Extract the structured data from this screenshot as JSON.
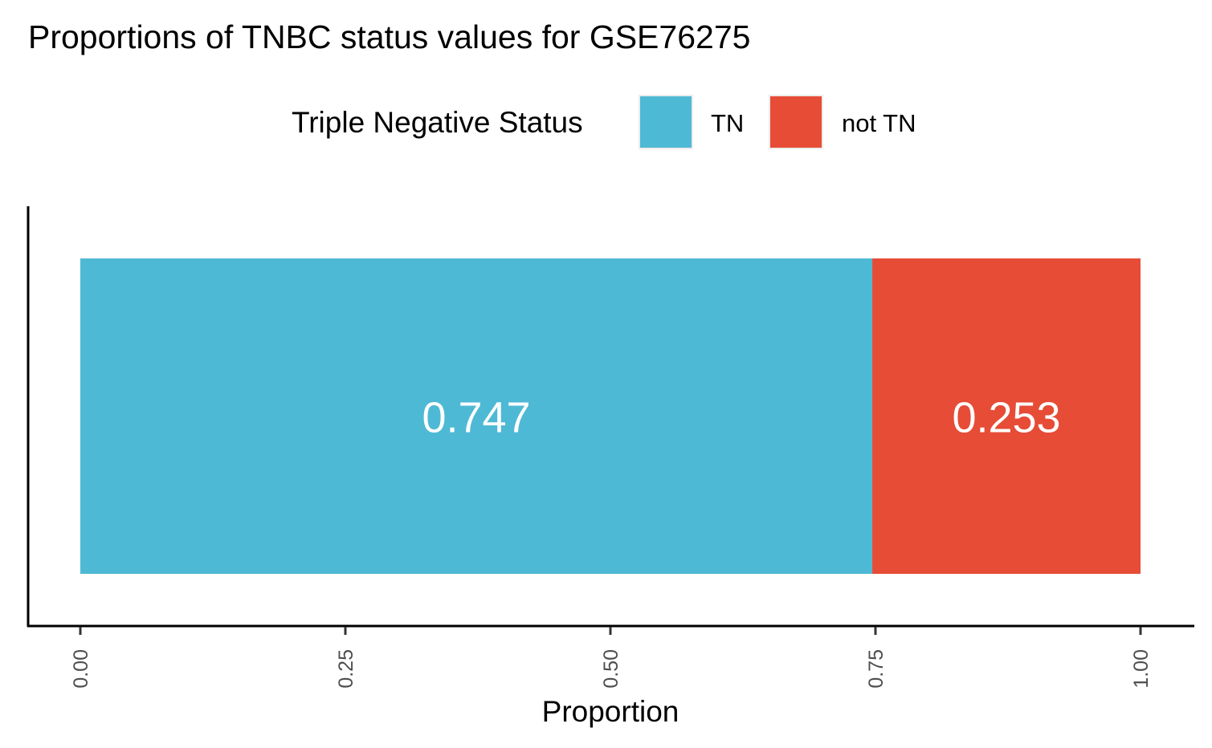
{
  "chart_data": {
    "type": "bar",
    "orientation": "horizontal",
    "stacked": true,
    "title": "Proportions of TNBC status values for GSE76275",
    "xlabel": "Proportion",
    "ylabel": "",
    "xlim": [
      0,
      1
    ],
    "x_ticks": [
      0,
      0.25,
      0.5,
      0.75,
      1.0
    ],
    "x_tick_labels": [
      "0.00",
      "0.25",
      "0.50",
      "0.75",
      "1.00"
    ],
    "grid": false,
    "legend": {
      "title": "Triple Negative Status",
      "position": "top"
    },
    "series": [
      {
        "name": "TN",
        "value": 0.747,
        "label": "0.747",
        "color": "#4EB9D4"
      },
      {
        "name": "not TN",
        "value": 0.253,
        "label": "0.253",
        "color": "#E64C36"
      }
    ]
  }
}
